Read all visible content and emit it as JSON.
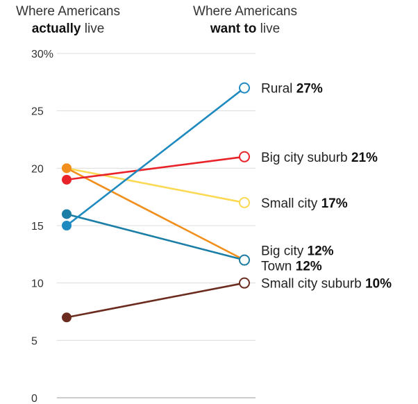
{
  "headers": {
    "left_line1": "Where Americans",
    "left_bold": "actually",
    "left_rest": " live",
    "right_line1": "Where Americans",
    "right_bold": "want to",
    "right_rest": " live"
  },
  "chart_data": {
    "type": "line",
    "style": "slope",
    "x": [
      "Where Americans actually live",
      "Where Americans want to live"
    ],
    "ylim": [
      0,
      30
    ],
    "yticks": [
      {
        "value": 30,
        "label": "30%"
      },
      {
        "value": 25,
        "label": "25"
      },
      {
        "value": 20,
        "label": "20"
      },
      {
        "value": 15,
        "label": "15"
      },
      {
        "value": 10,
        "label": "10"
      },
      {
        "value": 5,
        "label": "5"
      },
      {
        "value": 0,
        "label": "0"
      }
    ],
    "grid": true,
    "series": [
      {
        "name": "Rural",
        "values": [
          15,
          27
        ],
        "color": "#1f8ac0",
        "label_value": "27%"
      },
      {
        "name": "Big city suburb",
        "values": [
          19,
          21
        ],
        "color": "#e8232a",
        "label_value": "21%"
      },
      {
        "name": "Small city",
        "values": [
          20,
          17
        ],
        "color": "#fcd955",
        "label_value": "17%"
      },
      {
        "name": "Big city",
        "values": [
          16,
          12
        ],
        "color": "#1a7ea6",
        "label_value": "12%"
      },
      {
        "name": "Town",
        "values": [
          20,
          12
        ],
        "color": "#f28f1c",
        "label_value": "12%"
      },
      {
        "name": "Small city suburb",
        "values": [
          7,
          10
        ],
        "color": "#6b2c1f",
        "label_value": "10%"
      }
    ]
  }
}
